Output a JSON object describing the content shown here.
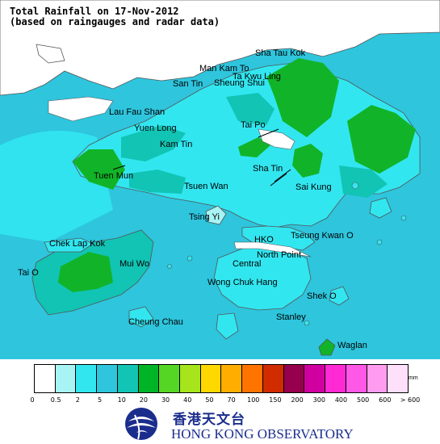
{
  "title": {
    "line1": "Total Rainfall on 17-Nov-2012",
    "line2": "(based on raingauges and radar data)"
  },
  "map": {
    "sea_color": "#2ec5dd",
    "places": [
      {
        "id": "sha-tau-kok",
        "name": "Sha Tau Kok"
      },
      {
        "id": "man-kam-to",
        "name": "Man Kam To"
      },
      {
        "id": "ta-kwu-ling",
        "name": "Ta Kwu Ling"
      },
      {
        "id": "san-tin",
        "name": "San Tin"
      },
      {
        "id": "sheung-shui",
        "name": "Sheung Shui"
      },
      {
        "id": "lau-fau-shan",
        "name": "Lau Fau Shan"
      },
      {
        "id": "yuen-long",
        "name": "Yuen Long"
      },
      {
        "id": "tai-po",
        "name": "Tai Po"
      },
      {
        "id": "kam-tin",
        "name": "Kam Tin"
      },
      {
        "id": "tuen-mun",
        "name": "Tuen Mun"
      },
      {
        "id": "sha-tin",
        "name": "Sha Tin"
      },
      {
        "id": "tsuen-wan",
        "name": "Tsuen Wan"
      },
      {
        "id": "sai-kung",
        "name": "Sai Kung"
      },
      {
        "id": "tsing-yi",
        "name": "Tsing Yi"
      },
      {
        "id": "chek-lap-kok",
        "name": "Chek Lap Kok"
      },
      {
        "id": "hko",
        "name": "HKO"
      },
      {
        "id": "tseung-kwan-o",
        "name": "Tseung Kwan O"
      },
      {
        "id": "mui-wo",
        "name": "Mui Wo"
      },
      {
        "id": "north-point",
        "name": "North Point"
      },
      {
        "id": "tai-o",
        "name": "Tai O"
      },
      {
        "id": "central",
        "name": "Central"
      },
      {
        "id": "wong-chuk-hang",
        "name": "Wong Chuk Hang"
      },
      {
        "id": "shek-o",
        "name": "Shek O"
      },
      {
        "id": "cheung-chau",
        "name": "Cheung Chau"
      },
      {
        "id": "stanley",
        "name": "Stanley"
      },
      {
        "id": "waglan",
        "name": "Waglan"
      }
    ]
  },
  "legend": {
    "unit": "mm",
    "colors": [
      "#ffffff",
      "#a8f4f4",
      "#32e6f0",
      "#2ec5dd",
      "#11c4b4",
      "#00b428",
      "#56d624",
      "#a6e41c",
      "#ffd800",
      "#ffae00",
      "#ff7400",
      "#d02c00",
      "#96004c",
      "#d000a0",
      "#ff2ad4",
      "#ff58e6",
      "#ff9cf0",
      "#ffe0fb"
    ],
    "ticks": [
      "0",
      "0.5",
      "2",
      "5",
      "10",
      "20",
      "30",
      "40",
      "50",
      "70",
      "100",
      "150",
      "200",
      "300",
      "400",
      "500",
      "600",
      "> 600"
    ]
  },
  "org": {
    "name_cn": "香港天文台",
    "name_en": "HONG KONG OBSERVATORY"
  }
}
